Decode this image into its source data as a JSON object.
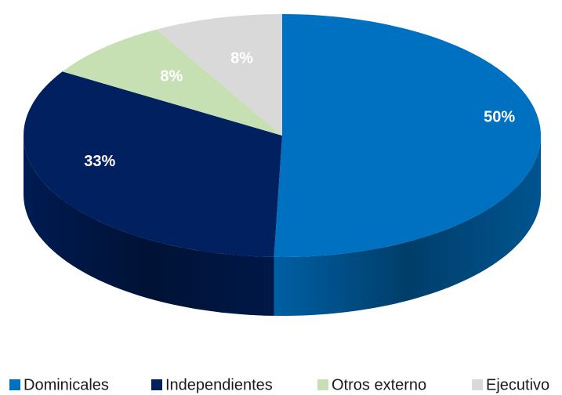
{
  "chart_data": {
    "type": "pie",
    "categories": [
      "Dominicales",
      "Independientes",
      "Otros externo",
      "Ejecutivo"
    ],
    "values": [
      50,
      33,
      8,
      8
    ],
    "value_labels": [
      "50%",
      "33%",
      "8%",
      "8%"
    ],
    "colors": [
      "#0070c0",
      "#002060",
      "#c6e0b4",
      "#d9d9d9"
    ],
    "legend": "bottom"
  }
}
